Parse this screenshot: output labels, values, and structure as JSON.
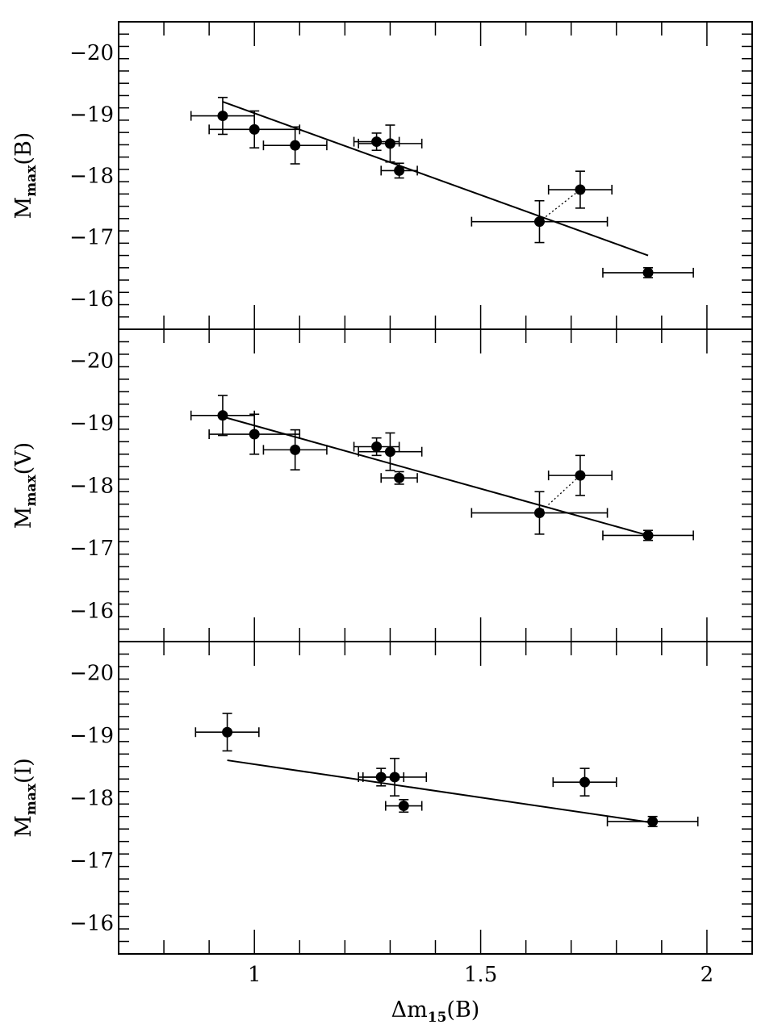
{
  "chart_data": [
    {
      "type": "scatter",
      "panel": "B",
      "ylabel": {
        "main": "M",
        "sub": "max",
        "rest": "(B)"
      },
      "xlim": [
        0.7,
        2.1
      ],
      "ylim": [
        -15.5,
        -20.5
      ],
      "y_ticks": [
        -20,
        -19,
        -18,
        -17,
        -16
      ],
      "y_tick_labels": [
        "−20",
        "−19",
        "−18",
        "−17",
        "−16"
      ],
      "points": [
        {
          "x": 0.93,
          "y": -18.97,
          "xerr": 0.07,
          "yerr": 0.3
        },
        {
          "x": 1.0,
          "y": -18.75,
          "xerr": 0.1,
          "yerr": 0.3
        },
        {
          "x": 1.09,
          "y": -18.49,
          "xerr": 0.07,
          "yerr": 0.3
        },
        {
          "x": 1.27,
          "y": -18.55,
          "xerr": 0.05,
          "yerr": 0.14
        },
        {
          "x": 1.3,
          "y": -18.52,
          "xerr": 0.07,
          "yerr": 0.3
        },
        {
          "x": 1.32,
          "y": -18.08,
          "xerr": 0.04,
          "yerr": 0.12
        },
        {
          "x": 1.63,
          "y": -17.25,
          "xerr": 0.15,
          "yerr": 0.34
        },
        {
          "x": 1.72,
          "y": -17.77,
          "xerr": 0.07,
          "yerr": 0.3
        },
        {
          "x": 1.87,
          "y": -16.42,
          "xerr": 0.1,
          "yerr": 0.08
        }
      ],
      "fit_line": {
        "x": [
          0.93,
          1.87
        ],
        "y": [
          -19.2,
          -16.7
        ]
      },
      "dotted_link": {
        "x": [
          1.63,
          1.72
        ],
        "y": [
          -17.25,
          -17.77
        ]
      }
    },
    {
      "type": "scatter",
      "panel": "V",
      "ylabel": {
        "main": "M",
        "sub": "max",
        "rest": "(V)"
      },
      "xlim": [
        0.7,
        2.1
      ],
      "ylim": [
        -15.5,
        -20.5
      ],
      "y_ticks": [
        -20,
        -19,
        -18,
        -17,
        -16
      ],
      "y_tick_labels": [
        "−20",
        "−19",
        "−18",
        "−17",
        "−16"
      ],
      "points": [
        {
          "x": 0.93,
          "y": -19.12,
          "xerr": 0.07,
          "yerr": 0.32
        },
        {
          "x": 1.0,
          "y": -18.82,
          "xerr": 0.1,
          "yerr": 0.32
        },
        {
          "x": 1.09,
          "y": -18.57,
          "xerr": 0.07,
          "yerr": 0.32
        },
        {
          "x": 1.27,
          "y": -18.62,
          "xerr": 0.05,
          "yerr": 0.14
        },
        {
          "x": 1.3,
          "y": -18.54,
          "xerr": 0.07,
          "yerr": 0.3
        },
        {
          "x": 1.32,
          "y": -18.12,
          "xerr": 0.04,
          "yerr": 0.1
        },
        {
          "x": 1.63,
          "y": -17.56,
          "xerr": 0.15,
          "yerr": 0.34
        },
        {
          "x": 1.72,
          "y": -18.16,
          "xerr": 0.07,
          "yerr": 0.32
        },
        {
          "x": 1.87,
          "y": -17.2,
          "xerr": 0.1,
          "yerr": 0.08
        }
      ],
      "fit_line": {
        "x": [
          0.93,
          1.87
        ],
        "y": [
          -19.1,
          -17.2
        ]
      },
      "dotted_link": {
        "x": [
          1.63,
          1.72
        ],
        "y": [
          -17.56,
          -18.16
        ]
      }
    },
    {
      "type": "scatter",
      "panel": "I",
      "ylabel": {
        "main": "M",
        "sub": "max",
        "rest": "(I)"
      },
      "xlabel": {
        "main": "Δm",
        "sub": "15",
        "rest": "(B)"
      },
      "xlim": [
        0.7,
        2.1
      ],
      "ylim": [
        -15.5,
        -20.5
      ],
      "x_ticks": [
        1,
        1.5,
        2
      ],
      "x_tick_labels": [
        "1",
        "1.5",
        "2"
      ],
      "y_ticks": [
        -20,
        -19,
        -18,
        -17,
        -16
      ],
      "y_tick_labels": [
        "−20",
        "−19",
        "−18",
        "−17",
        "−16"
      ],
      "points": [
        {
          "x": 0.94,
          "y": -19.05,
          "xerr": 0.07,
          "yerr": 0.3
        },
        {
          "x": 1.28,
          "y": -18.33,
          "xerr": 0.05,
          "yerr": 0.14
        },
        {
          "x": 1.31,
          "y": -18.33,
          "xerr": 0.07,
          "yerr": 0.3
        },
        {
          "x": 1.33,
          "y": -17.87,
          "xerr": 0.04,
          "yerr": 0.1
        },
        {
          "x": 1.73,
          "y": -18.25,
          "xerr": 0.07,
          "yerr": 0.22
        },
        {
          "x": 1.88,
          "y": -17.62,
          "xerr": 0.1,
          "yerr": 0.08
        }
      ],
      "fit_line": {
        "x": [
          0.94,
          1.88
        ],
        "y": [
          -18.6,
          -17.6
        ]
      }
    }
  ]
}
